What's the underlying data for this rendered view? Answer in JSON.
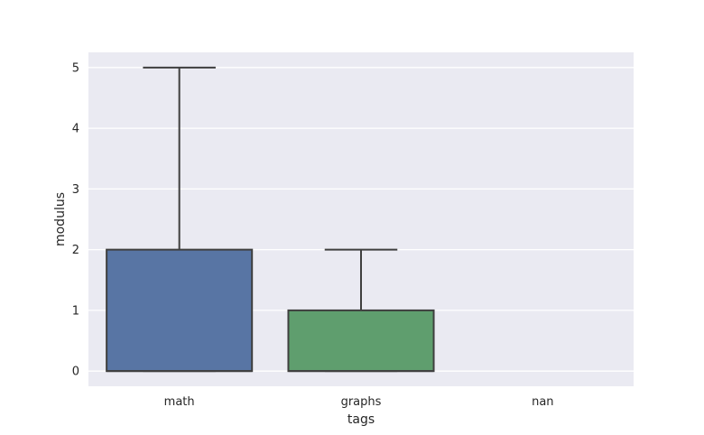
{
  "chart_data": {
    "type": "box",
    "xlabel": "tags",
    "ylabel": "modulus",
    "ylim": [
      -0.25,
      5.25
    ],
    "yticks": [
      0,
      1,
      2,
      3,
      4,
      5
    ],
    "categories": [
      "math",
      "graphs",
      "nan"
    ],
    "boxes": [
      {
        "category": "math",
        "min": 0,
        "q1": 0,
        "median": 0,
        "q3": 2,
        "max": 5,
        "color": "#5875a4"
      },
      {
        "category": "graphs",
        "min": 0,
        "q1": 0,
        "median": 0,
        "q3": 1,
        "max": 2,
        "color": "#5f9e6e"
      },
      {
        "category": "nan",
        "min": null,
        "q1": null,
        "median": null,
        "q3": null,
        "max": null,
        "color": null
      }
    ],
    "grid": true,
    "background_color": "#eaeaf2",
    "gridline_color": "#ffffff",
    "line_color": "#3f3f3f"
  }
}
